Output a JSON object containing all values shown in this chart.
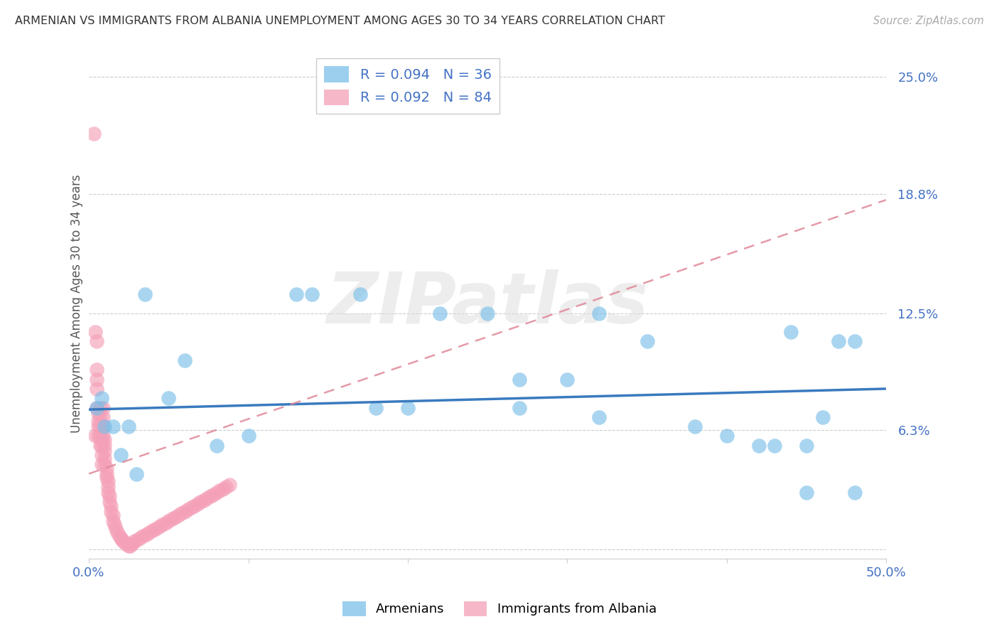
{
  "title": "ARMENIAN VS IMMIGRANTS FROM ALBANIA UNEMPLOYMENT AMONG AGES 30 TO 34 YEARS CORRELATION CHART",
  "source": "Source: ZipAtlas.com",
  "ylabel": "Unemployment Among Ages 30 to 34 years",
  "xlim": [
    0.0,
    0.5
  ],
  "ylim": [
    -0.005,
    0.265
  ],
  "ytick_vals": [
    0.0,
    0.063,
    0.125,
    0.188,
    0.25
  ],
  "ytick_labels": [
    "",
    "6.3%",
    "12.5%",
    "18.8%",
    "25.0%"
  ],
  "xtick_vals": [
    0.0,
    0.1,
    0.2,
    0.3,
    0.4,
    0.5
  ],
  "xtick_labels": [
    "0.0%",
    "",
    "",
    "",
    "",
    "50.0%"
  ],
  "armenians_color": "#7bbfe8",
  "albania_color": "#f4a0b8",
  "arm_line_color": "#3a7abf",
  "alb_line_color": "#d08090",
  "watermark": "ZIPatlas",
  "arm_x": [
    0.005,
    0.008,
    0.01,
    0.015,
    0.02,
    0.025,
    0.03,
    0.035,
    0.05,
    0.06,
    0.08,
    0.1,
    0.13,
    0.14,
    0.17,
    0.18,
    0.2,
    0.22,
    0.25,
    0.27,
    0.3,
    0.32,
    0.35,
    0.38,
    0.4,
    0.42,
    0.43,
    0.44,
    0.45,
    0.46,
    0.47,
    0.48,
    0.27,
    0.32,
    0.45,
    0.48
  ],
  "arm_y": [
    0.075,
    0.08,
    0.065,
    0.065,
    0.05,
    0.065,
    0.04,
    0.135,
    0.08,
    0.1,
    0.055,
    0.06,
    0.135,
    0.135,
    0.135,
    0.075,
    0.075,
    0.125,
    0.125,
    0.075,
    0.09,
    0.07,
    0.11,
    0.065,
    0.06,
    0.055,
    0.055,
    0.115,
    0.03,
    0.07,
    0.11,
    0.03,
    0.09,
    0.125,
    0.055,
    0.11
  ],
  "alb_x": [
    0.003,
    0.004,
    0.004,
    0.005,
    0.005,
    0.005,
    0.005,
    0.005,
    0.006,
    0.006,
    0.006,
    0.006,
    0.007,
    0.007,
    0.007,
    0.007,
    0.007,
    0.008,
    0.008,
    0.008,
    0.008,
    0.009,
    0.009,
    0.009,
    0.009,
    0.01,
    0.01,
    0.01,
    0.01,
    0.01,
    0.011,
    0.011,
    0.011,
    0.012,
    0.012,
    0.012,
    0.013,
    0.013,
    0.014,
    0.014,
    0.015,
    0.015,
    0.016,
    0.017,
    0.018,
    0.019,
    0.02,
    0.021,
    0.022,
    0.023,
    0.025,
    0.026,
    0.027,
    0.028,
    0.03,
    0.032,
    0.034,
    0.036,
    0.038,
    0.04,
    0.042,
    0.044,
    0.046,
    0.048,
    0.05,
    0.052,
    0.054,
    0.056,
    0.058,
    0.06,
    0.062,
    0.064,
    0.066,
    0.068,
    0.07,
    0.072,
    0.074,
    0.076,
    0.078,
    0.08,
    0.082,
    0.084,
    0.086,
    0.088
  ],
  "alb_y": [
    0.22,
    0.115,
    0.06,
    0.11,
    0.095,
    0.09,
    0.085,
    0.075,
    0.072,
    0.068,
    0.065,
    0.06,
    0.075,
    0.07,
    0.065,
    0.06,
    0.055,
    0.058,
    0.055,
    0.05,
    0.045,
    0.075,
    0.07,
    0.065,
    0.06,
    0.058,
    0.055,
    0.052,
    0.048,
    0.045,
    0.043,
    0.04,
    0.038,
    0.036,
    0.033,
    0.03,
    0.028,
    0.025,
    0.023,
    0.02,
    0.018,
    0.015,
    0.013,
    0.011,
    0.009,
    0.007,
    0.006,
    0.005,
    0.004,
    0.003,
    0.002,
    0.002,
    0.003,
    0.004,
    0.005,
    0.006,
    0.007,
    0.008,
    0.009,
    0.01,
    0.011,
    0.012,
    0.013,
    0.014,
    0.015,
    0.016,
    0.017,
    0.018,
    0.019,
    0.02,
    0.021,
    0.022,
    0.023,
    0.024,
    0.025,
    0.026,
    0.027,
    0.028,
    0.029,
    0.03,
    0.031,
    0.032,
    0.033,
    0.034
  ]
}
